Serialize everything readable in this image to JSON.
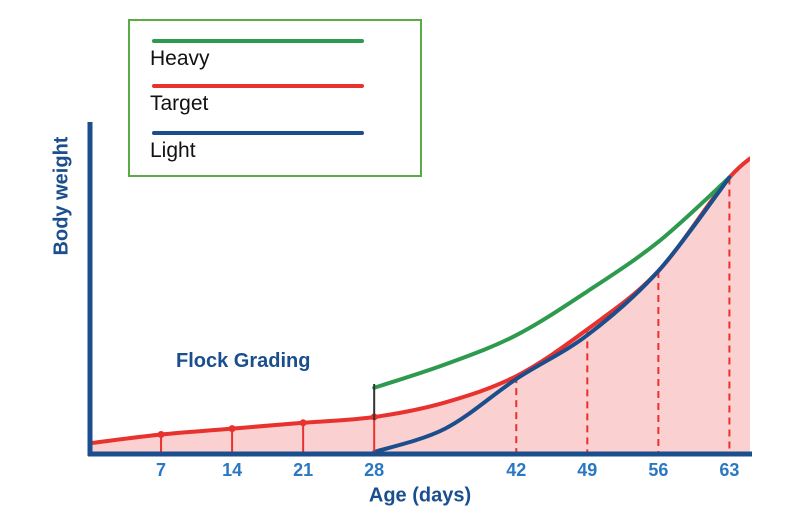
{
  "chart_data": {
    "type": "line",
    "xlabel": "Age (days)",
    "ylabel": "Body weight",
    "x_ticks": [
      7,
      14,
      21,
      28,
      42,
      49,
      56,
      63
    ],
    "xlim": [
      0,
      67
    ],
    "ylim": [
      0,
      100
    ],
    "annotation": "Flock Grading",
    "annotation_day": 28,
    "dashed_drops_at": [
      42,
      49,
      56,
      63
    ],
    "series": [
      {
        "name": "Heavy",
        "color": "#2e9a4e",
        "x": [
          28,
          35,
          42,
          49,
          56,
          63
        ],
        "y": [
          22,
          30,
          40,
          55,
          72,
          94
        ]
      },
      {
        "name": "Target",
        "color": "#e8322e",
        "x": [
          0,
          7,
          14,
          21,
          28,
          35,
          42,
          49,
          56,
          63,
          67
        ],
        "y": [
          3,
          6,
          8,
          10,
          12,
          17,
          26,
          42,
          62,
          94,
          105
        ]
      },
      {
        "name": "Light",
        "color": "#1a4e8c",
        "x": [
          28,
          35,
          42,
          49,
          56,
          63
        ],
        "y": [
          0,
          8,
          25,
          40,
          62,
          94
        ]
      }
    ],
    "colors": {
      "axis": "#1a4e8c",
      "fill": "#fbd0d0",
      "dash": "#e8322e",
      "marker": "#e8322e",
      "legend_border": "#5aaa46"
    }
  }
}
